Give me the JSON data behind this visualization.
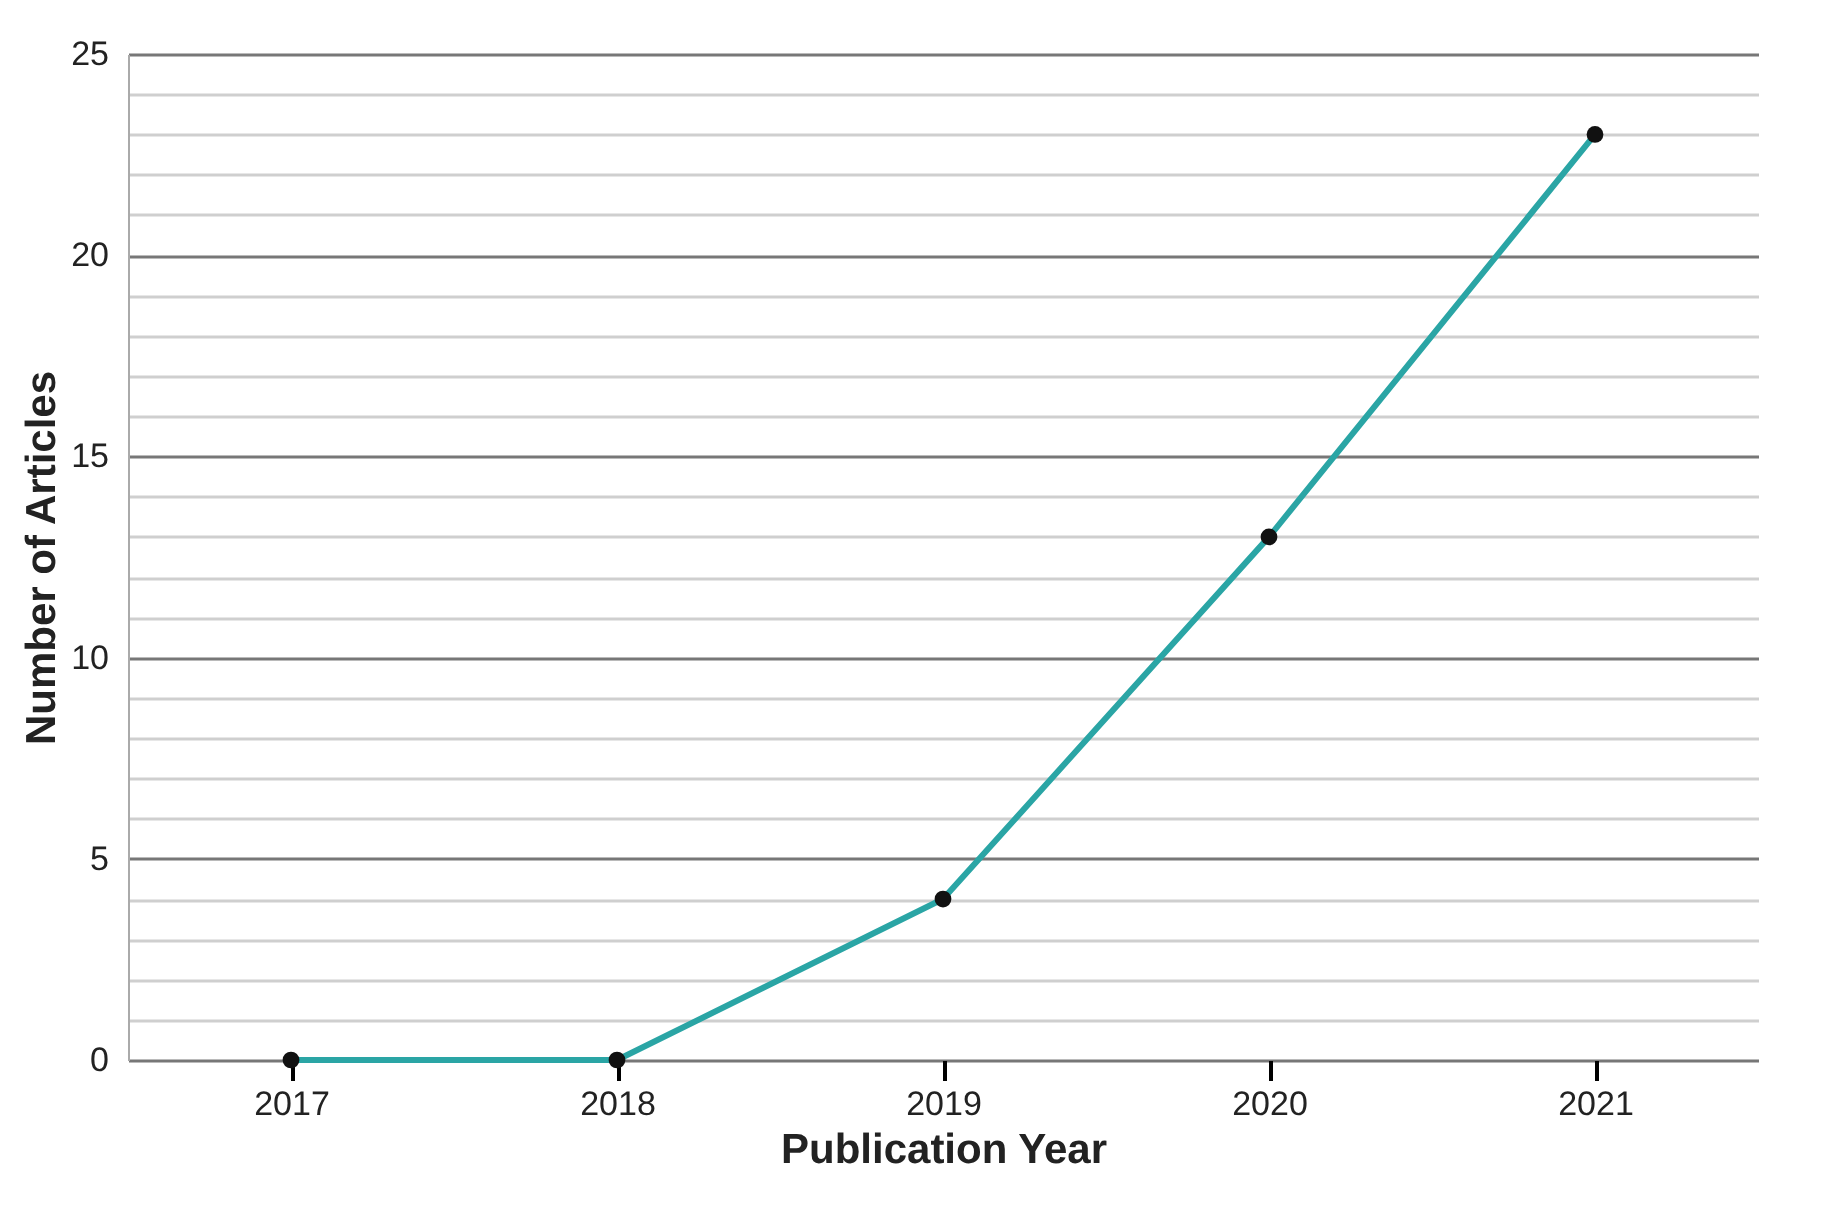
{
  "chart_data": {
    "type": "line",
    "xlabel": "Publication Year",
    "ylabel": "Number of Articles",
    "categories": [
      "2017",
      "2018",
      "2019",
      "2020",
      "2021"
    ],
    "series": [
      {
        "color": "#2aa5a5",
        "values": [
          0,
          0,
          4,
          13,
          23
        ]
      }
    ],
    "ylim": [
      0,
      25
    ],
    "yticks": [
      0,
      {
        "value": 1,
        "label": null
      },
      {
        "value": 2,
        "label": null
      },
      {
        "value": 3,
        "label": null
      },
      {
        "value": 4,
        "label": null
      },
      5,
      {
        "value": 6,
        "label": null
      },
      {
        "value": 7,
        "label": null
      },
      {
        "value": 8,
        "label": null
      },
      {
        "value": 9,
        "label": null
      },
      10,
      {
        "value": 11,
        "label": null
      },
      {
        "value": 12,
        "label": null
      },
      {
        "value": 13,
        "label": null
      },
      {
        "value": 14,
        "label": null
      },
      15,
      {
        "value": 16,
        "label": null
      },
      {
        "value": 17,
        "label": null
      },
      {
        "value": 18,
        "label": null
      },
      {
        "value": 19,
        "label": null
      },
      20,
      {
        "value": 21,
        "label": null
      },
      {
        "value": 22,
        "label": null
      },
      {
        "value": 23,
        "label": null
      },
      {
        "value": 24,
        "label": null
      },
      25
    ],
    "grid": "y",
    "marker": "circle",
    "line_style": "solid"
  }
}
